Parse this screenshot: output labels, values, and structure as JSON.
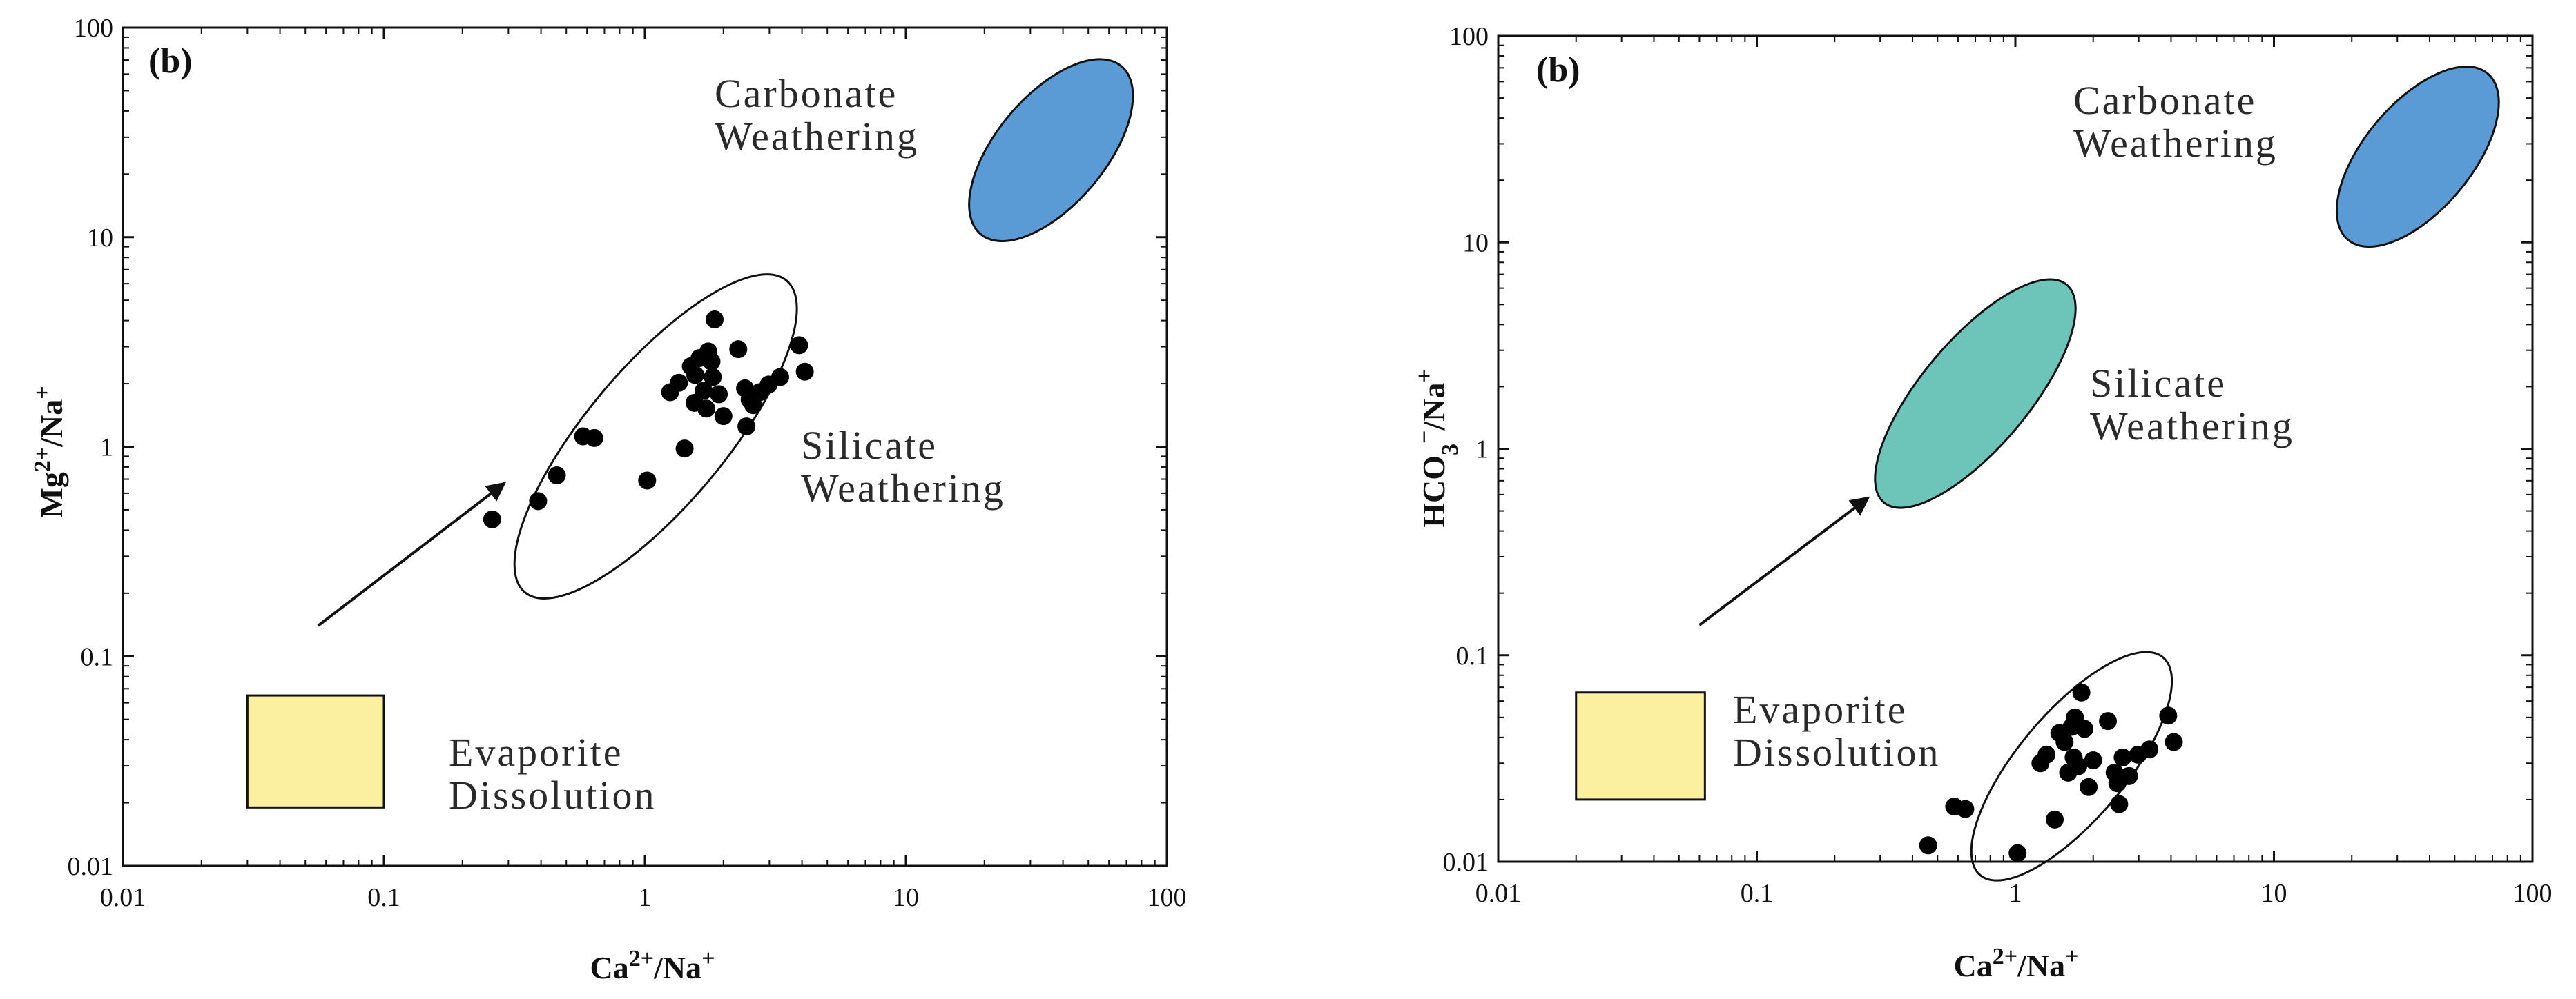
{
  "chart_data": [
    {
      "type": "scatter",
      "panel_label": "(b)",
      "xscale": "log",
      "yscale": "log",
      "xlim": [
        0.01,
        100
      ],
      "ylim": [
        0.01,
        100
      ],
      "xticks": [
        "0.01",
        "0.1",
        "1",
        "10",
        "100"
      ],
      "yticks": [
        "0.01",
        "0.1",
        "1",
        "10",
        "100"
      ],
      "xlabel": {
        "base": "Ca",
        "sup1": "2+",
        "mid": "/Na",
        "sup2": "+"
      },
      "ylabel": {
        "base": "Mg",
        "sup1": "2+",
        "mid": "/Na",
        "sup2": "+"
      },
      "regions": [
        {
          "name": "carbonate",
          "label_lines": [
            "Carbonate",
            "Weathering"
          ],
          "shape": "ellipse",
          "fill": "#5b9bd5",
          "center": [
            36,
            26
          ],
          "rx_decades": 0.42,
          "ry_decades": 0.26,
          "angle_deg": -50
        },
        {
          "name": "evaporite",
          "label_lines": [
            "Evaporite",
            "Dissolution"
          ],
          "shape": "rect",
          "fill": "#fbf0a0",
          "x_range": [
            0.03,
            0.1
          ],
          "y_range": [
            0.019,
            0.065
          ]
        }
      ],
      "silicate_label_lines": [
        "Silicate",
        "Weathering"
      ],
      "outline_ellipse": {
        "center": [
          1.1,
          1.12
        ],
        "rx_decades": 0.78,
        "ry_decades": 0.33,
        "angle_deg": -50
      },
      "arrow": {
        "from": [
          0.056,
          0.14
        ],
        "to": [
          0.29,
          0.67
        ]
      },
      "points": [
        [
          0.26,
          0.45
        ],
        [
          0.39,
          0.55
        ],
        [
          0.46,
          0.73
        ],
        [
          0.58,
          1.12
        ],
        [
          0.64,
          1.1
        ],
        [
          1.02,
          0.69
        ],
        [
          1.25,
          1.82
        ],
        [
          1.35,
          2.02
        ],
        [
          1.42,
          0.98
        ],
        [
          1.5,
          2.42
        ],
        [
          1.56,
          2.2
        ],
        [
          1.62,
          2.65
        ],
        [
          1.55,
          1.62
        ],
        [
          1.68,
          1.85
        ],
        [
          1.72,
          1.52
        ],
        [
          1.75,
          2.85
        ],
        [
          1.8,
          2.55
        ],
        [
          1.82,
          2.15
        ],
        [
          1.85,
          4.05
        ],
        [
          1.92,
          1.78
        ],
        [
          2.0,
          1.4
        ],
        [
          2.28,
          2.92
        ],
        [
          2.42,
          1.9
        ],
        [
          2.45,
          1.25
        ],
        [
          2.52,
          1.68
        ],
        [
          2.6,
          1.58
        ],
        [
          2.75,
          1.82
        ],
        [
          2.98,
          1.98
        ],
        [
          3.3,
          2.15
        ],
        [
          3.9,
          3.05
        ],
        [
          4.1,
          2.28
        ]
      ]
    },
    {
      "type": "scatter",
      "panel_label": "(b)",
      "xscale": "log",
      "yscale": "log",
      "xlim": [
        0.01,
        100
      ],
      "ylim": [
        0.01,
        100
      ],
      "xticks": [
        "0.01",
        "0.1",
        "1",
        "10",
        "100"
      ],
      "yticks": [
        "0.01",
        "0.1",
        "1",
        "10",
        "100"
      ],
      "xlabel": {
        "base": "Ca",
        "sup1": "2+",
        "mid": "/Na",
        "sup2": "+"
      },
      "ylabel": {
        "base": "HCO",
        "sub": "3",
        "sup1": "−",
        "mid": "/Na",
        "sup2": "+"
      },
      "regions": [
        {
          "name": "carbonate",
          "label_lines": [
            "Carbonate",
            "Weathering"
          ],
          "shape": "ellipse",
          "fill": "#5b9bd5",
          "center": [
            36,
            26
          ],
          "rx_decades": 0.42,
          "ry_decades": 0.26,
          "angle_deg": -50
        },
        {
          "name": "silicate",
          "label_lines": [
            "Silicate",
            "Weathering"
          ],
          "shape": "ellipse",
          "fill": "#6cc5b8",
          "center": [
            0.7,
            1.85
          ],
          "rx_decades": 0.55,
          "ry_decades": 0.26,
          "angle_deg": -50
        },
        {
          "name": "evaporite",
          "label_lines": [
            "Evaporite",
            "Dissolution"
          ],
          "shape": "rect",
          "fill": "#fbf0a0",
          "x_range": [
            0.02,
            0.063
          ],
          "y_range": [
            0.02,
            0.066
          ]
        }
      ],
      "outline_ellipse": {
        "center": [
          1.65,
          0.029
        ],
        "rx_decades": 0.55,
        "ry_decades": 0.26,
        "angle_deg": -50
      },
      "arrow": {
        "from": [
          0.06,
          0.14
        ],
        "to": [
          0.27,
          0.58
        ]
      },
      "points": [
        [
          0.46,
          0.012
        ],
        [
          0.58,
          0.0185
        ],
        [
          0.64,
          0.018
        ],
        [
          1.02,
          0.011
        ],
        [
          1.25,
          0.03
        ],
        [
          1.32,
          0.033
        ],
        [
          1.42,
          0.016
        ],
        [
          1.48,
          0.042
        ],
        [
          1.55,
          0.038
        ],
        [
          1.6,
          0.027
        ],
        [
          1.65,
          0.045
        ],
        [
          1.7,
          0.05
        ],
        [
          1.68,
          0.032
        ],
        [
          1.75,
          0.029
        ],
        [
          1.8,
          0.066
        ],
        [
          1.85,
          0.044
        ],
        [
          1.92,
          0.023
        ],
        [
          2.0,
          0.031
        ],
        [
          2.28,
          0.048
        ],
        [
          2.42,
          0.027
        ],
        [
          2.48,
          0.024
        ],
        [
          2.52,
          0.019
        ],
        [
          2.6,
          0.032
        ],
        [
          2.75,
          0.026
        ],
        [
          2.98,
          0.033
        ],
        [
          3.3,
          0.035
        ],
        [
          3.9,
          0.051
        ],
        [
          4.1,
          0.038
        ]
      ]
    }
  ]
}
